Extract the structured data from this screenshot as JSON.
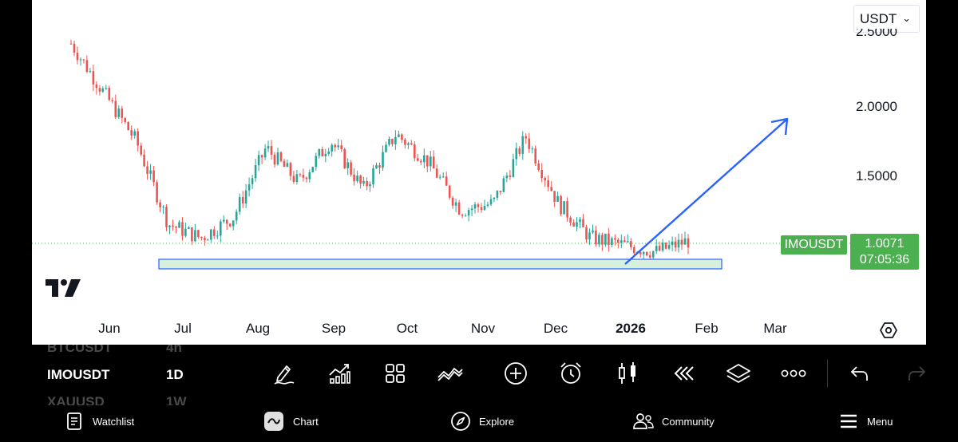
{
  "currency": "USDT",
  "price_axis": [
    "2.5000",
    "2.0000",
    "1.5000"
  ],
  "symbol_tag": "IMOUSDT",
  "last_price": "1.0071",
  "countdown": "07:05:36",
  "time_axis": [
    "Jun",
    "Jul",
    "Aug",
    "Sep",
    "Oct",
    "Nov",
    "Dec",
    "2026",
    "Feb",
    "Mar"
  ],
  "watchlist": {
    "items": [
      {
        "symbol": "BTCUSDT",
        "interval": "4h"
      },
      {
        "symbol": "IMOUSDT",
        "interval": "1D"
      },
      {
        "symbol": "XAUUSD",
        "interval": "1W"
      }
    ]
  },
  "toolbar": {
    "icons": [
      "drawing-pen-icon",
      "indicators-icon",
      "grid-layout-icon",
      "compare-icon",
      "add-icon",
      "alarm-icon",
      "candles-icon",
      "replay-icon",
      "layers-icon",
      "more-icon",
      "undo-icon",
      "redo-icon"
    ]
  },
  "nav": {
    "items": [
      {
        "label": "Watchlist",
        "icon": "watchlist-icon"
      },
      {
        "label": "Chart",
        "icon": "chart-icon"
      },
      {
        "label": "Explore",
        "icon": "compass-icon"
      },
      {
        "label": "Community",
        "icon": "community-icon"
      },
      {
        "label": "Menu",
        "icon": "menu-icon"
      }
    ]
  },
  "colors": {
    "up": "#26a69a",
    "down": "#ef5350",
    "tag": "#4caf50",
    "zone_fill": "#d6f0dc",
    "zone_border": "#2962ff",
    "arrow": "#2962ff"
  },
  "chart_data": {
    "type": "candlestick",
    "symbol": "IMOUSDT",
    "interval": "1D",
    "y_axis_ticks": [
      2.5,
      2.0,
      1.5
    ],
    "last_price": 1.0071,
    "x_axis_ticks": [
      "Jun",
      "Jul",
      "Aug",
      "Sep",
      "Oct",
      "Nov",
      "Dec",
      "2026",
      "Feb",
      "Mar"
    ],
    "approx_close_path": [
      {
        "t": "May end",
        "close": 2.45
      },
      {
        "t": "Jun early",
        "close": 2.1
      },
      {
        "t": "Jun mid",
        "close": 1.75
      },
      {
        "t": "Jun late",
        "close": 1.15
      },
      {
        "t": "Jul early",
        "close": 1.05
      },
      {
        "t": "Jul mid",
        "close": 1.2
      },
      {
        "t": "Aug early",
        "close": 1.7
      },
      {
        "t": "Aug mid",
        "close": 1.45
      },
      {
        "t": "Aug late",
        "close": 1.75
      },
      {
        "t": "Sep mid",
        "close": 1.4
      },
      {
        "t": "Sep late",
        "close": 1.8
      },
      {
        "t": "Oct early",
        "close": 1.6
      },
      {
        "t": "Oct mid",
        "close": 1.25
      },
      {
        "t": "Oct late",
        "close": 1.3
      },
      {
        "t": "Nov early",
        "close": 1.78
      },
      {
        "t": "Nov mid",
        "close": 1.3
      },
      {
        "t": "Nov late",
        "close": 1.05
      },
      {
        "t": "Dec mid",
        "close": 1.0
      },
      {
        "t": "Dec late",
        "close": 0.95
      },
      {
        "t": "Jan early",
        "close": 1.03
      }
    ],
    "support_zone": {
      "from": 0.92,
      "to": 0.98
    },
    "arrow": {
      "direction": "up",
      "target_price": 1.92
    }
  }
}
